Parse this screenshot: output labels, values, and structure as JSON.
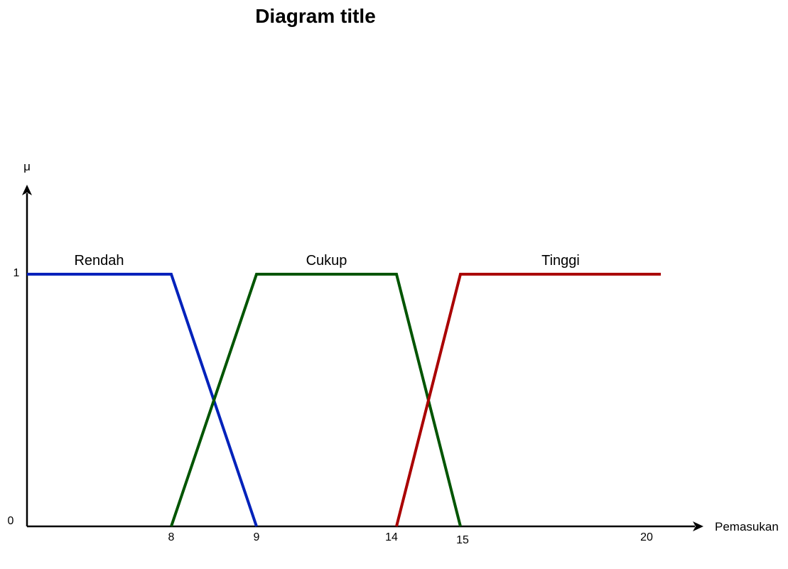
{
  "chart_data": {
    "type": "line",
    "title": "Diagram title",
    "xlabel": "Pemasukan",
    "ylabel": "μ",
    "x_ticks": [
      "8",
      "9",
      "14",
      "15",
      "20"
    ],
    "y_ticks": [
      "0",
      "1"
    ],
    "xlim": [
      0,
      22
    ],
    "ylim": [
      0,
      1
    ],
    "grid": false,
    "legend": "none",
    "series": [
      {
        "name": "Rendah",
        "color": "#0022bb",
        "x": [
          0,
          8,
          9
        ],
        "y": [
          1,
          1,
          0
        ]
      },
      {
        "name": "Cukup",
        "color": "#005500",
        "x": [
          8,
          9,
          14,
          15
        ],
        "y": [
          0,
          1,
          1,
          0
        ]
      },
      {
        "name": "Tinggi",
        "color": "#aa0000",
        "x": [
          14,
          15,
          20
        ],
        "y": [
          0,
          1,
          1
        ]
      }
    ]
  }
}
